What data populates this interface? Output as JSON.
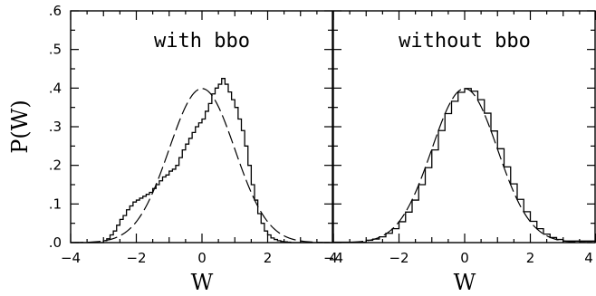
{
  "chart_data": {
    "type": "line",
    "ylabel": "P(W)",
    "y_tick_labels": [
      ".0",
      ".1",
      ".2",
      ".3",
      ".4",
      ".5",
      ".6"
    ],
    "ylim": [
      0,
      0.6
    ],
    "panels": [
      {
        "title": "with bbo",
        "xlabel": "W",
        "x_tick_labels": [
          "−4",
          "−2",
          "0",
          "2",
          "4"
        ],
        "xlim": [
          -4,
          4
        ],
        "series": [
          {
            "style": "histogram (solid step)",
            "x": [
              -4.0,
              -3.0,
              -2.9,
              -2.8,
              -2.7,
              -2.6,
              -2.5,
              -2.4,
              -2.3,
              -2.2,
              -2.1,
              -2.0,
              -1.9,
              -1.8,
              -1.7,
              -1.6,
              -1.5,
              -1.4,
              -1.3,
              -1.2,
              -1.1,
              -1.0,
              -0.9,
              -0.8,
              -0.7,
              -0.6,
              -0.5,
              -0.4,
              -0.3,
              -0.2,
              -0.1,
              0.0,
              0.1,
              0.2,
              0.3,
              0.4,
              0.5,
              0.6,
              0.7,
              0.8,
              0.9,
              1.0,
              1.1,
              1.2,
              1.3,
              1.4,
              1.5,
              1.6,
              1.7,
              1.8,
              1.9,
              2.0,
              2.1,
              2.2,
              2.3,
              2.4,
              2.5,
              2.6,
              2.7,
              2.8,
              2.9,
              3.0,
              4.0
            ],
            "y": [
              0.0,
              0.005,
              0.01,
              0.02,
              0.03,
              0.045,
              0.06,
              0.07,
              0.085,
              0.095,
              0.105,
              0.11,
              0.115,
              0.12,
              0.125,
              0.13,
              0.14,
              0.15,
              0.16,
              0.17,
              0.175,
              0.185,
              0.19,
              0.2,
              0.22,
              0.24,
              0.255,
              0.27,
              0.285,
              0.3,
              0.31,
              0.32,
              0.34,
              0.36,
              0.385,
              0.4,
              0.41,
              0.425,
              0.41,
              0.39,
              0.37,
              0.35,
              0.32,
              0.29,
              0.25,
              0.2,
              0.15,
              0.11,
              0.075,
              0.05,
              0.03,
              0.02,
              0.012,
              0.008,
              0.005,
              0.003,
              0.002,
              0.001,
              0.0,
              0.0,
              0.0,
              0.0,
              0.0
            ]
          },
          {
            "style": "dashed Gaussian",
            "mean": 0,
            "sigma": 1
          }
        ]
      },
      {
        "title": "without bbo",
        "xlabel": "W",
        "x_tick_labels": [
          "−4",
          "−2",
          "0",
          "2",
          "4"
        ],
        "xlim": [
          -4,
          4
        ],
        "series": [
          {
            "style": "histogram (solid step)",
            "x": [
              -4.0,
              -3.0,
              -2.8,
              -2.6,
              -2.4,
              -2.2,
              -2.0,
              -1.8,
              -1.6,
              -1.4,
              -1.2,
              -1.0,
              -0.8,
              -0.6,
              -0.4,
              -0.2,
              0.0,
              0.2,
              0.4,
              0.6,
              0.8,
              1.0,
              1.2,
              1.4,
              1.6,
              1.8,
              2.0,
              2.2,
              2.4,
              2.6,
              2.8,
              3.0,
              4.0
            ],
            "y": [
              0.001,
              0.006,
              0.009,
              0.015,
              0.024,
              0.036,
              0.054,
              0.079,
              0.11,
              0.15,
              0.194,
              0.24,
              0.29,
              0.334,
              0.366,
              0.389,
              0.399,
              0.392,
              0.37,
              0.335,
              0.289,
              0.243,
              0.196,
              0.152,
              0.112,
              0.08,
              0.055,
              0.036,
              0.022,
              0.013,
              0.008,
              0.004,
              0.0
            ]
          },
          {
            "style": "dashed Gaussian",
            "mean": 0,
            "sigma": 1
          }
        ]
      }
    ]
  }
}
